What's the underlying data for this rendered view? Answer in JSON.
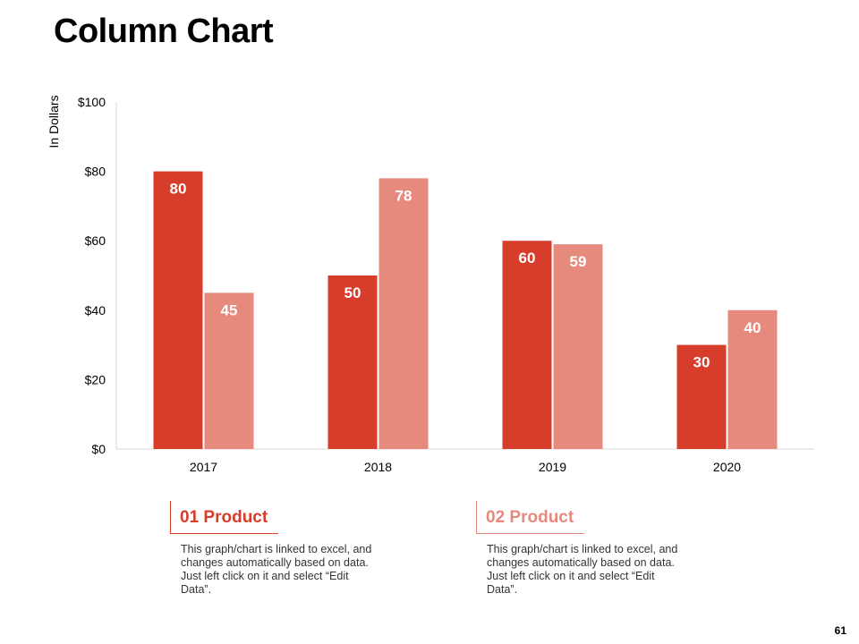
{
  "page": {
    "title": "Column Chart",
    "page_number": "61"
  },
  "colors": {
    "series1": "#D63D2B",
    "series2": "#E68A7E",
    "axis": "#D9D9D9"
  },
  "legend": [
    {
      "heading": "01 Product",
      "description": "This graph/chart is linked to excel, and changes automatically based on data. Just left click on it and select “Edit Data”."
    },
    {
      "heading": "02 Product",
      "description": "This graph/chart is linked to excel, and changes automatically based on data. Just left click on it and select “Edit Data”."
    }
  ],
  "chart_data": {
    "type": "bar",
    "title": "",
    "xlabel": "",
    "ylabel": "In Dollars",
    "categories": [
      "2017",
      "2018",
      "2019",
      "2020"
    ],
    "series": [
      {
        "name": "01 Product",
        "values": [
          80,
          50,
          60,
          30
        ]
      },
      {
        "name": "02 Product",
        "values": [
          45,
          78,
          59,
          40
        ]
      }
    ],
    "ylim": [
      0,
      100
    ],
    "yticks": [
      0,
      20,
      40,
      60,
      80,
      100
    ],
    "ytick_labels": [
      "$0",
      "$20",
      "$40",
      "$60",
      "$80",
      "$100"
    ],
    "grid": false,
    "data_labels": true
  }
}
